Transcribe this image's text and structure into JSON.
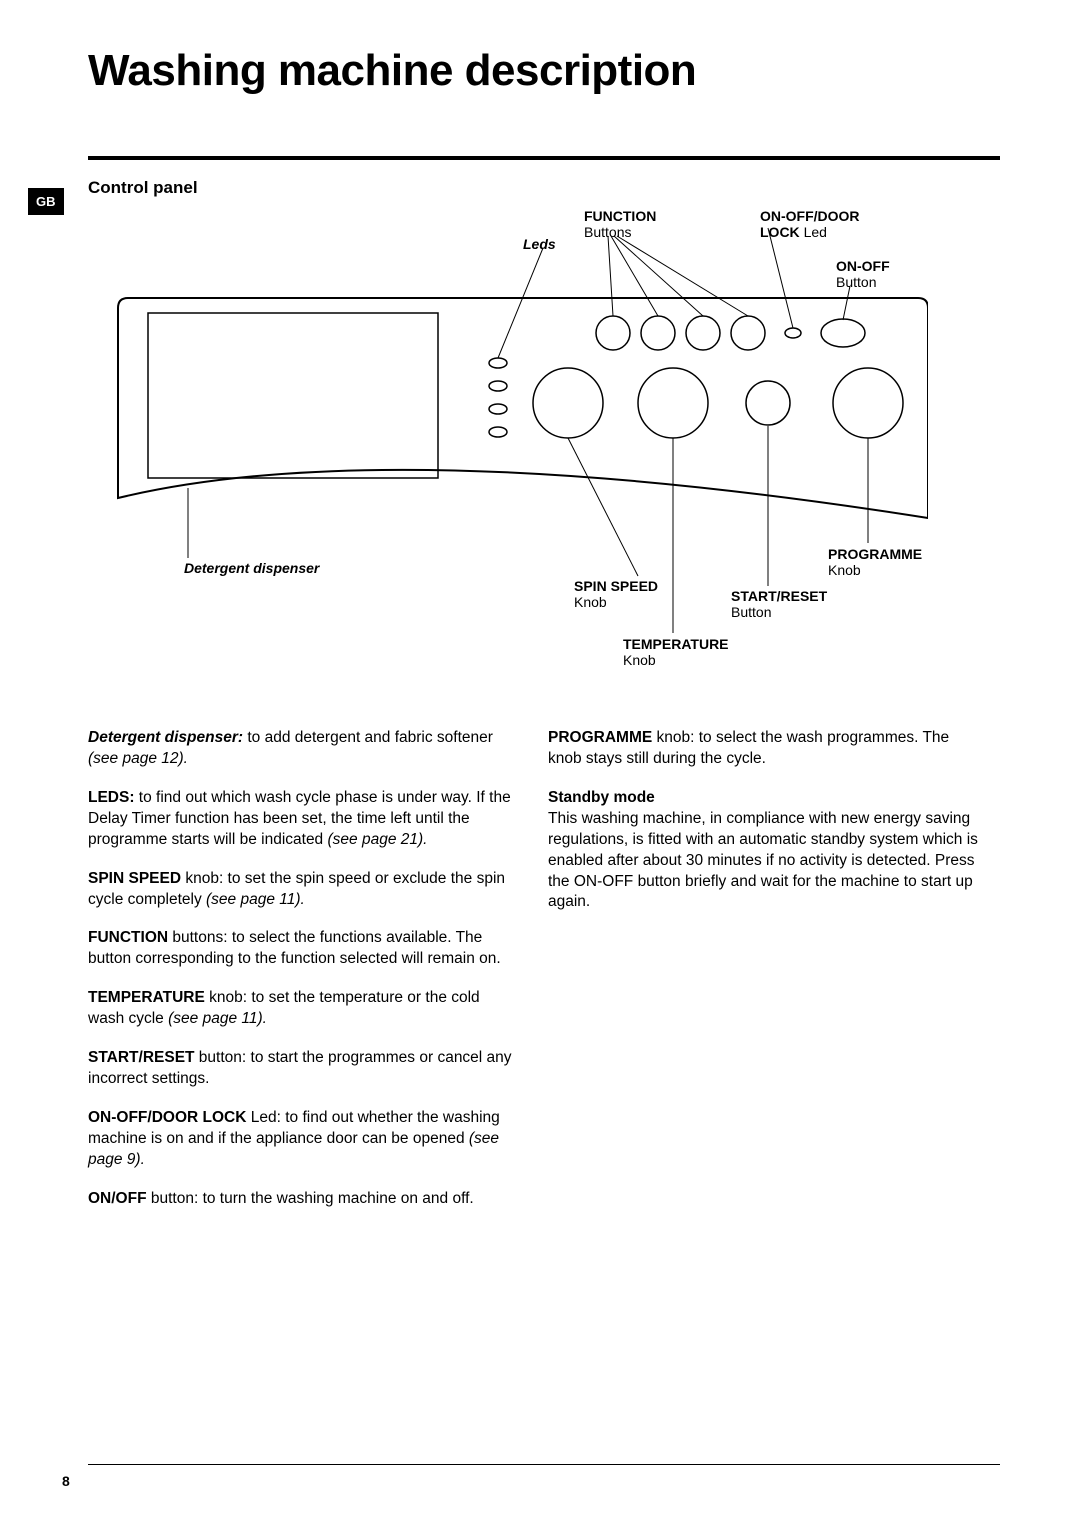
{
  "page": {
    "title": "Washing machine description",
    "section": "Control panel",
    "lang_tab": "GB",
    "page_number": "8"
  },
  "diagram": {
    "labels": {
      "function": {
        "title": "FUNCTION",
        "sub": "Buttons"
      },
      "leds": "Leds",
      "onoff_door": {
        "title": "ON-OFF/DOOR",
        "sub": "LOCK",
        "sub2": "Led"
      },
      "onoff": {
        "title": "ON-OFF",
        "sub": "Button"
      },
      "detergent": "Detergent dispenser",
      "spin": {
        "title": "SPIN SPEED",
        "sub": "Knob"
      },
      "temp": {
        "title": "TEMPERATURE",
        "sub": "Knob"
      },
      "start_reset": {
        "title": "START/RESET",
        "sub": "Button"
      },
      "programme": {
        "title": "PROGRAMME",
        "sub": "Knob"
      }
    }
  },
  "body": {
    "left": [
      {
        "bold_italic": "Detergent dispenser:",
        "text": " to add detergent and fabric softener ",
        "italic_tail": "(see page 12)."
      },
      {
        "bold": "LEDS:",
        "text": " to find out which wash cycle phase is under way. If the Delay Timer function has been set, the time left until the programme starts will be indicated ",
        "italic_tail": "(see page 21)."
      },
      {
        "bold": "SPIN SPEED",
        "text": " knob: to set the spin speed or exclude the spin cycle completely ",
        "italic_tail": "(see page 11)."
      },
      {
        "bold": "FUNCTION",
        "text": " buttons: to select the functions available. The button corresponding to the function selected will remain on."
      },
      {
        "bold": "TEMPERATURE",
        "text": " knob: to set the temperature or the cold wash cycle ",
        "italic_tail": "(see page 11)."
      },
      {
        "bold": "START/RESET",
        "text": " button: to start the programmes or cancel any incorrect settings."
      },
      {
        "bold": "ON-OFF/DOOR LOCK",
        "text": " Led: to find out whether the washing machine is on and if the appliance door can be opened ",
        "italic_tail": "(see page 9)."
      },
      {
        "bold": "ON/OFF",
        "text": " button: to turn the washing machine on and off."
      }
    ],
    "right": [
      {
        "bold": "PROGRAMME",
        "text": " knob: to select the wash programmes. The knob stays still during the cycle."
      },
      {
        "bold": "Standby mode",
        "text_block": "This washing machine, in compliance with new energy saving regulations, is fitted with an automatic standby system which is enabled after about 30 minutes if no activity is detected. Press the ON-OFF button briefly and wait for the machine to start up again."
      }
    ]
  }
}
